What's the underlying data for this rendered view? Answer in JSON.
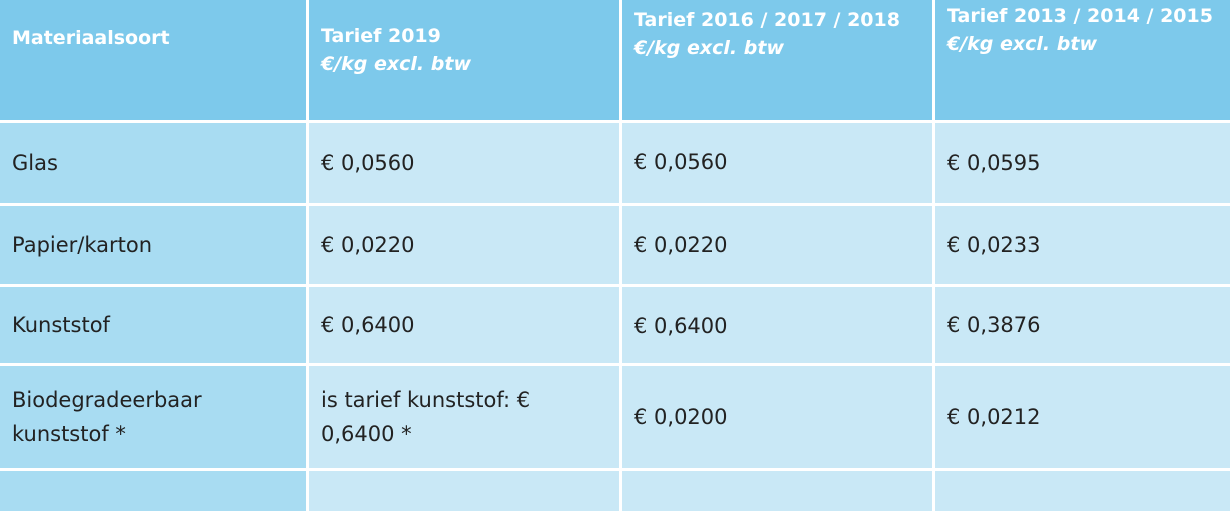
{
  "table": {
    "header": [
      {
        "title": "Materiaalsoort"
      },
      {
        "title": "Tarief 2019",
        "subtitle": "€/kg excl. btw"
      },
      {
        "title": "Tarief 2016 / 2017 / 2018",
        "subtitle": "€/kg excl. btw"
      },
      {
        "title": "Tarief  2013 / 2014 / 2015",
        "subtitle": "€/kg excl. btw"
      }
    ],
    "rows": [
      [
        "Glas",
        "€ 0,0560",
        "€ 0,0560",
        "€ 0,0595"
      ],
      [
        "Papier/karton",
        "€ 0,0220",
        "€ 0,0220",
        "€ 0,0233"
      ],
      [
        "Kunststof",
        "€ 0,6400",
        "€ 0,6400",
        "€ 0,3876"
      ],
      [
        "Biodegradeerbaar kunststof *",
        "is tarief kunststof: € 0,6400 *",
        "€ 0,0200",
        "€ 0,0212"
      ]
    ]
  }
}
